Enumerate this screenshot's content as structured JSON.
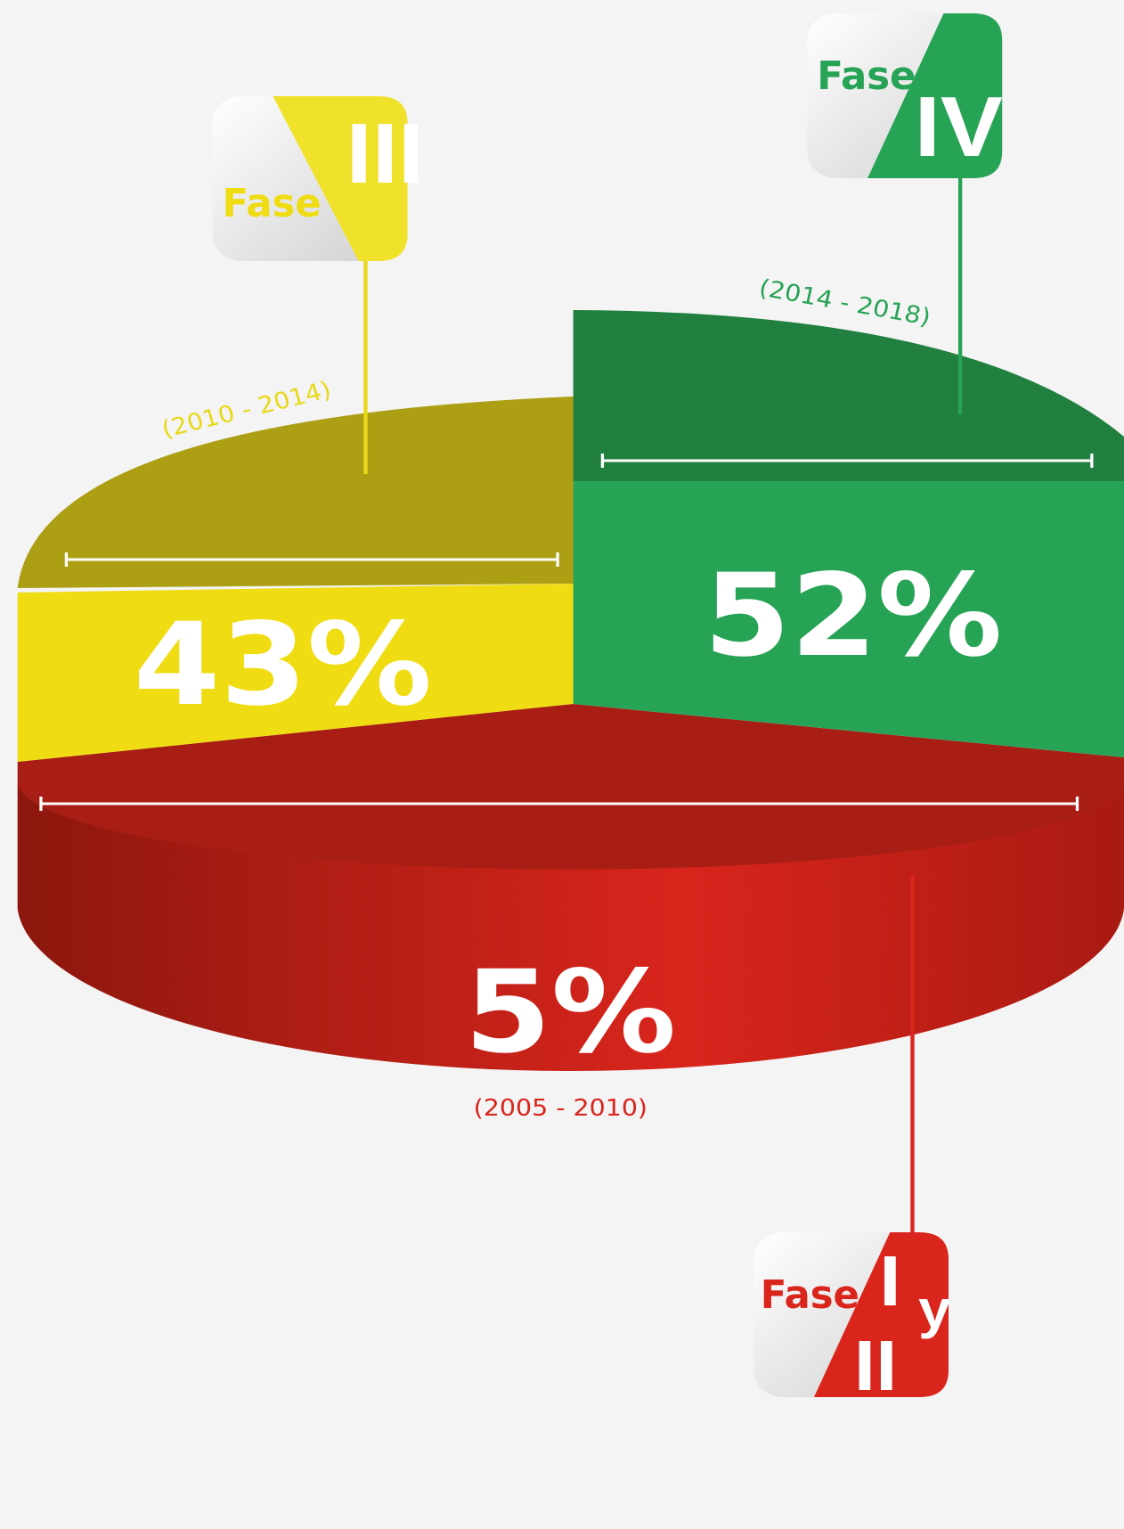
{
  "segments": [
    {
      "word": "Fase",
      "phase": "III",
      "period": "(2010 - 2014)",
      "share": "43%"
    },
    {
      "word": "Fase",
      "phase": "IV",
      "period": "(2014 - 2018)",
      "share": "52%"
    },
    {
      "word": "Fase",
      "phase": "I",
      "joiner": "y",
      "phase2": "II",
      "period": "(2005 - 2010)",
      "share": "5%"
    }
  ]
}
